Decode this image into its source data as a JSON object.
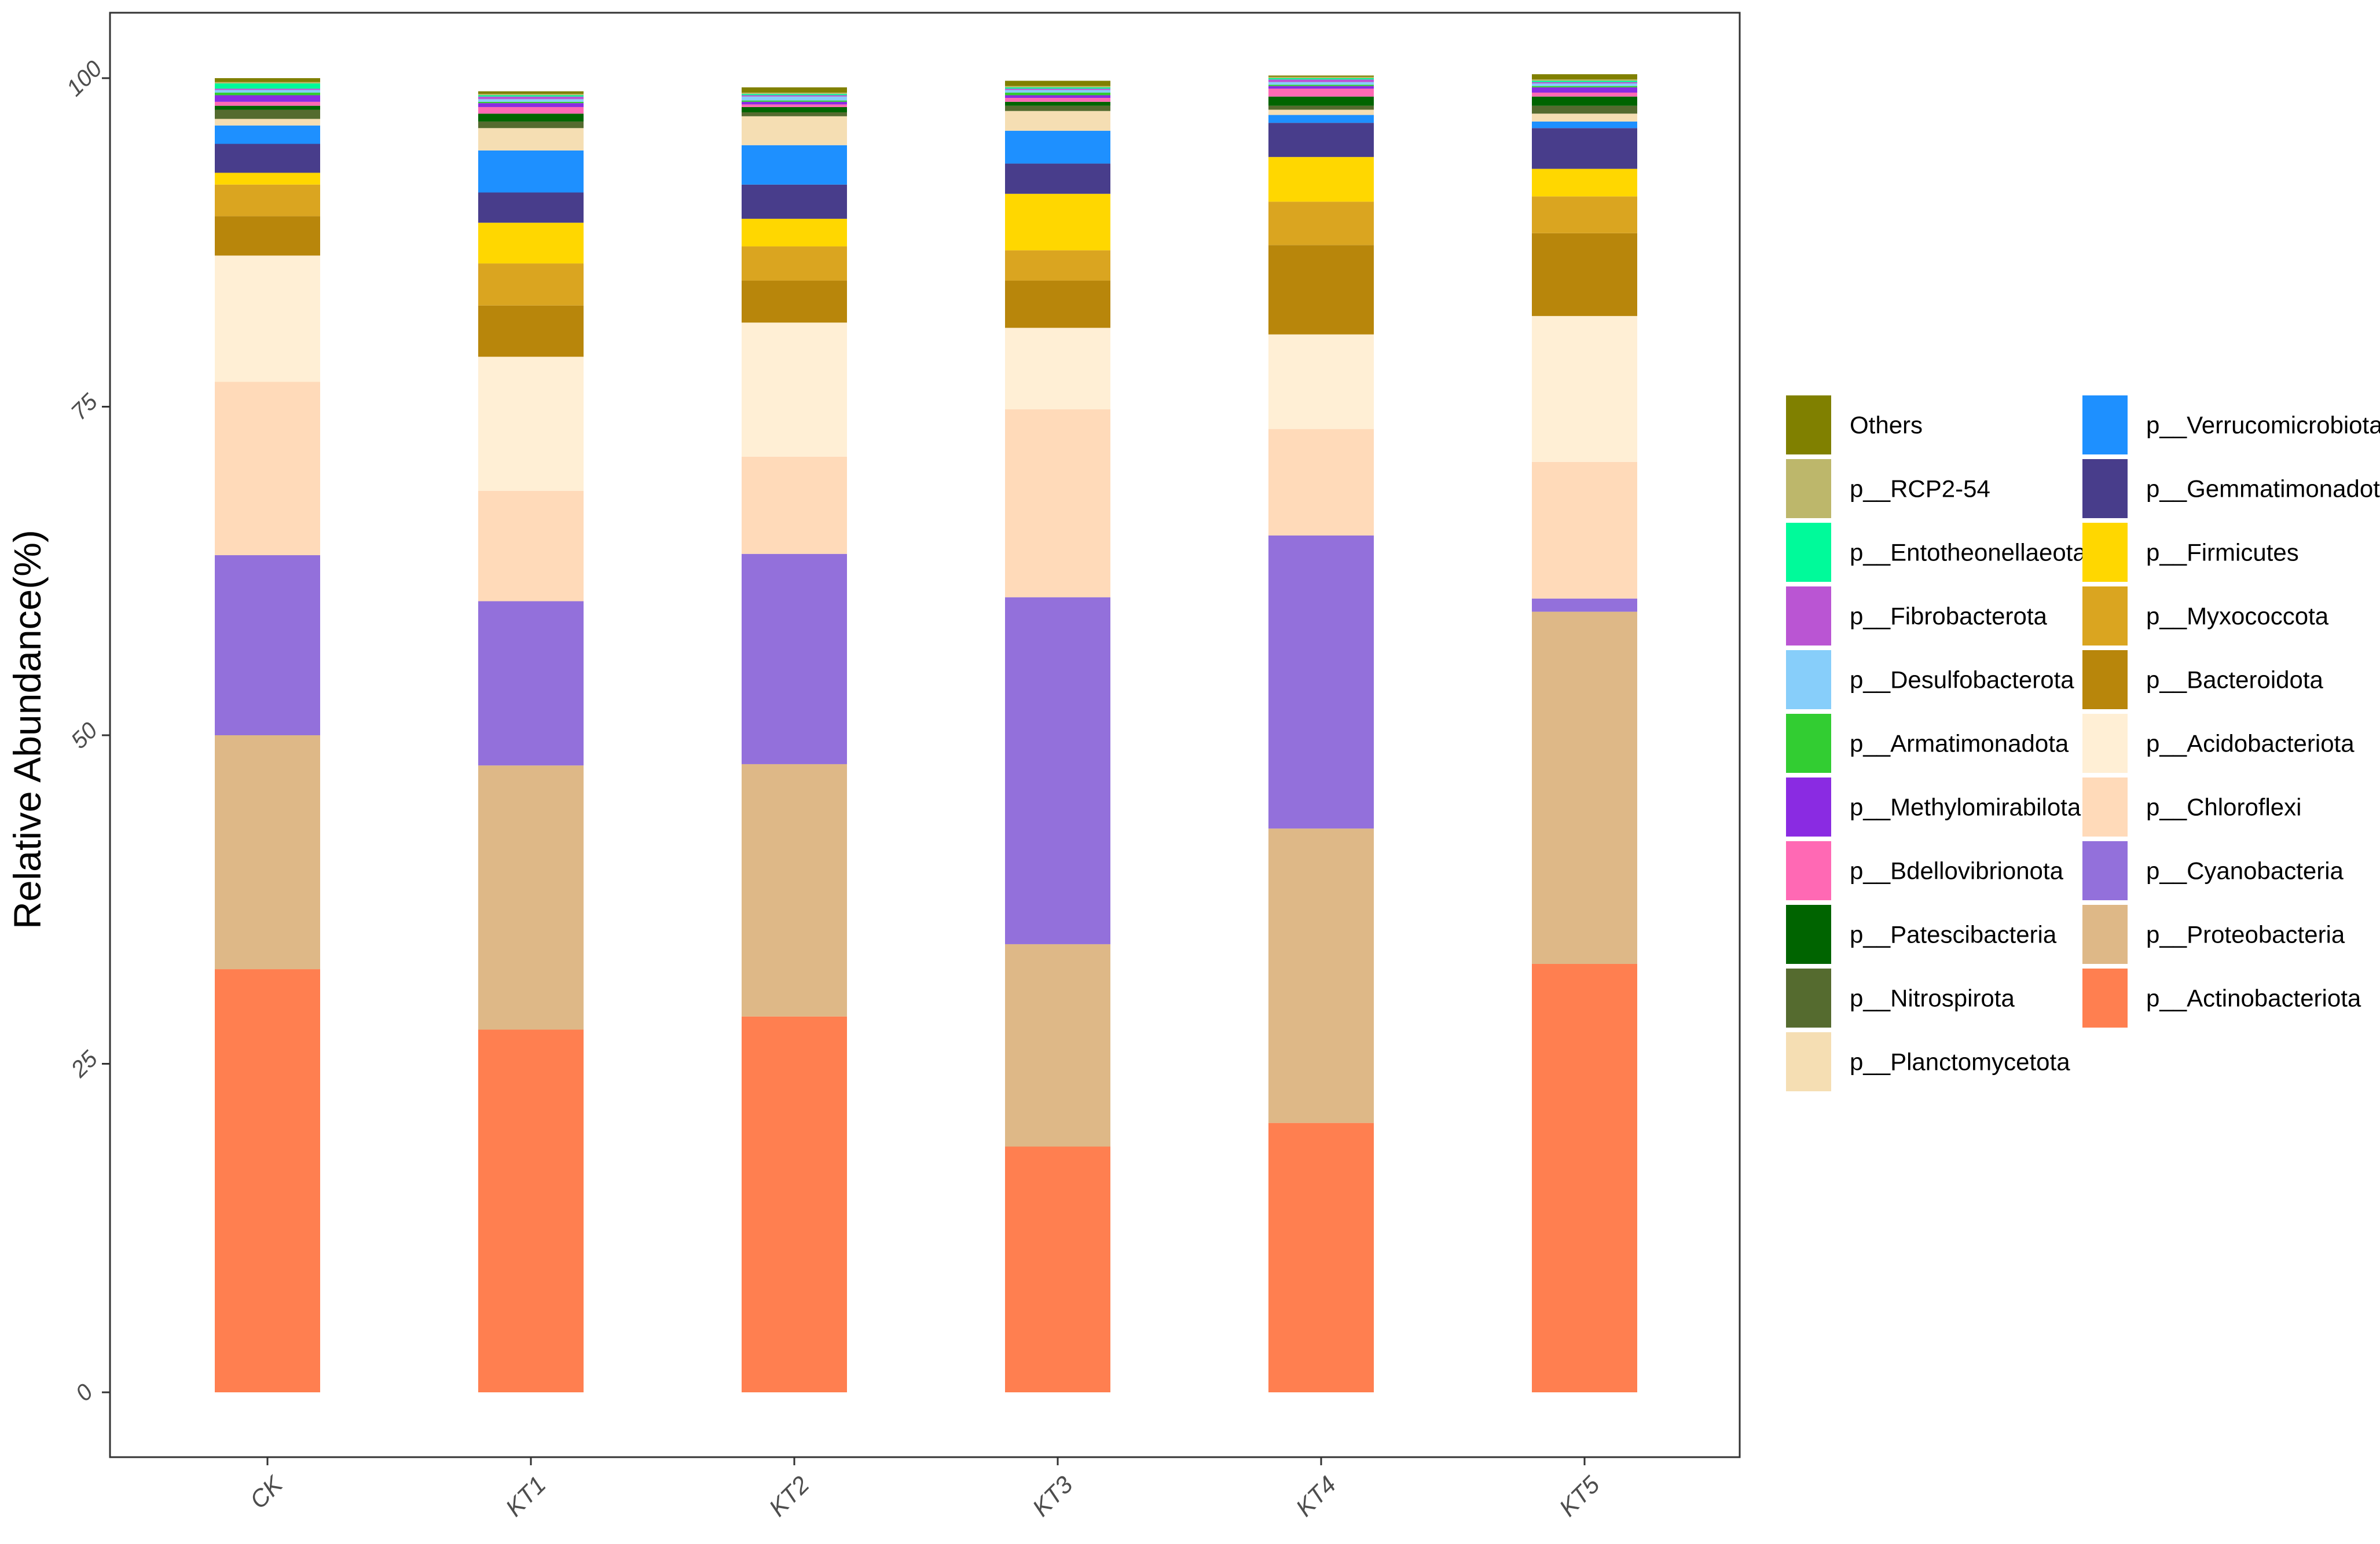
{
  "chart_data": {
    "type": "bar",
    "stacked": true,
    "title": "",
    "xlabel": "",
    "ylabel": "Relative Abundance(%)",
    "ylim": [
      0,
      100
    ],
    "yticks": [
      0,
      25,
      50,
      75,
      100
    ],
    "categories": [
      "CK",
      "KT1",
      "KT2",
      "KT3",
      "KT4",
      "KT5"
    ],
    "series": [
      {
        "name": "p__Actinobacteriota",
        "color": "#FF7F50",
        "values": [
          32.2,
          27.6,
          28.6,
          18.7,
          20.5,
          32.6
        ]
      },
      {
        "name": "p__Proteobacteria",
        "color": "#DEB887",
        "values": [
          17.8,
          20.1,
          19.2,
          15.4,
          22.4,
          26.8
        ]
      },
      {
        "name": "p__Cyanobacteria",
        "color": "#9370DB",
        "values": [
          13.7,
          12.5,
          16.0,
          26.4,
          22.3,
          1.0
        ]
      },
      {
        "name": "p__Chloroflexi",
        "color": "#FFDAB9",
        "values": [
          13.2,
          8.4,
          7.4,
          14.3,
          8.1,
          10.4
        ]
      },
      {
        "name": "p__Acidobacteriota",
        "color": "#FFEFD5",
        "values": [
          9.6,
          10.2,
          10.2,
          6.2,
          7.2,
          11.1
        ]
      },
      {
        "name": "p__Bacteroidota",
        "color": "#B8860B",
        "values": [
          3.0,
          3.9,
          3.2,
          3.6,
          6.8,
          6.3
        ]
      },
      {
        "name": "p__Myxococcota",
        "color": "#DAA520",
        "values": [
          2.4,
          3.2,
          2.6,
          2.3,
          3.3,
          2.8
        ]
      },
      {
        "name": "p__Firmicutes",
        "color": "#FFD700",
        "values": [
          0.9,
          3.1,
          2.1,
          4.3,
          3.4,
          2.1
        ]
      },
      {
        "name": "p__Gemmatimonadota",
        "color": "#483D8B",
        "values": [
          2.2,
          2.3,
          2.6,
          2.3,
          2.6,
          3.1
        ]
      },
      {
        "name": "p__Verrucomicrobiota",
        "color": "#1E90FF",
        "values": [
          1.4,
          3.2,
          3.0,
          2.5,
          0.6,
          0.5
        ]
      },
      {
        "name": "p__Planctomycetota",
        "color": "#F5DEB3",
        "values": [
          0.5,
          1.7,
          2.2,
          1.5,
          0.4,
          0.6
        ]
      },
      {
        "name": "p__Nitrospirota",
        "color": "#556B2F",
        "values": [
          0.7,
          0.5,
          0.3,
          0.4,
          0.3,
          0.6
        ]
      },
      {
        "name": "p__Patescibacteria",
        "color": "#006400",
        "values": [
          0.3,
          0.6,
          0.4,
          0.3,
          0.7,
          0.7
        ]
      },
      {
        "name": "p__Bdellovibrionota",
        "color": "#FF69B4",
        "values": [
          0.3,
          0.5,
          0.2,
          0.3,
          0.6,
          0.3
        ]
      },
      {
        "name": "p__Methylomirabilota",
        "color": "#8A2BE2",
        "values": [
          0.5,
          0.3,
          0.2,
          0.2,
          0.2,
          0.4
        ]
      },
      {
        "name": "p__Armatimonadota",
        "color": "#32CD32",
        "values": [
          0.2,
          0.1,
          0.1,
          0.2,
          0.1,
          0.1
        ]
      },
      {
        "name": "p__Desulfobacterota",
        "color": "#87CEFA",
        "values": [
          0.2,
          0.2,
          0.3,
          0.2,
          0.2,
          0.2
        ]
      },
      {
        "name": "p__Fibrobacterota",
        "color": "#BA55D3",
        "values": [
          0.1,
          0.2,
          0.1,
          0.1,
          0.2,
          0.1
        ]
      },
      {
        "name": "p__Entotheonellaeota",
        "color": "#00FA9A",
        "values": [
          0.4,
          0.1,
          0.1,
          0.1,
          0.1,
          0.1
        ]
      },
      {
        "name": "p__RCP2-54",
        "color": "#BDB76B",
        "values": [
          0.1,
          0.1,
          0.1,
          0.1,
          0.1,
          0.1
        ]
      },
      {
        "name": "Others",
        "color": "#808000",
        "values": [
          0.3,
          0.2,
          0.4,
          0.4,
          0.1,
          0.4
        ]
      }
    ],
    "legend": {
      "placement": "right",
      "columns": [
        [
          "Others",
          "p__RCP2-54",
          "p__Entotheonellaeota",
          "p__Fibrobacterota",
          "p__Desulfobacterota",
          "p__Armatimonadota",
          "p__Methylomirabilota",
          "p__Bdellovibrionota",
          "p__Patescibacteria",
          "p__Nitrospirota",
          "p__Planctomycetota"
        ],
        [
          "p__Verrucomicrobiota",
          "p__Gemmatimonadota",
          "p__Firmicutes",
          "p__Myxococcota",
          "p__Bacteroidota",
          "p__Acidobacteriota",
          "p__Chloroflexi",
          "p__Cyanobacteria",
          "p__Proteobacteria",
          "p__Actinobacteriota"
        ]
      ]
    },
    "grid": false
  }
}
